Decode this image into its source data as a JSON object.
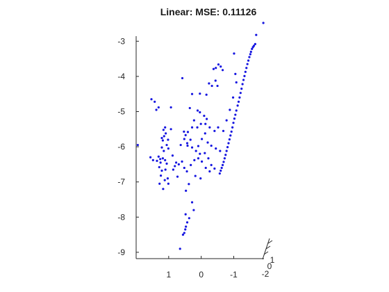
{
  "chart_data": {
    "type": "scatter",
    "title": "Linear: MSE: 0.11126",
    "marker_color": "#1515e0",
    "grid": false,
    "legend": "none",
    "zlim": [
      -9.2,
      -2.5
    ],
    "z_ticks": [
      {
        "value": -3,
        "label": "-3"
      },
      {
        "value": -4,
        "label": "-4"
      },
      {
        "value": -5,
        "label": "-5"
      },
      {
        "value": -6,
        "label": "-6"
      },
      {
        "value": -7,
        "label": "-7"
      },
      {
        "value": -8,
        "label": "-8"
      },
      {
        "value": -9,
        "label": "-9"
      }
    ],
    "xlim": [
      2,
      -2.1
    ],
    "x_ticks": [
      {
        "value": 1,
        "label": "1"
      },
      {
        "value": 0,
        "label": "0"
      },
      {
        "value": -1,
        "label": "-1"
      }
    ],
    "depth_ticks": [
      {
        "label": "1"
      },
      {
        "label": "0"
      },
      {
        "label": "-2"
      }
    ],
    "points": [
      [
        -1.91,
        -2.48
      ],
      [
        -1.69,
        -2.82
      ],
      [
        -1.66,
        -3.08
      ],
      [
        -1.62,
        -3.13
      ],
      [
        -1.59,
        -3.17
      ],
      [
        -1.56,
        -3.22
      ],
      [
        -1.53,
        -3.3
      ],
      [
        -1.51,
        -3.37
      ],
      [
        -1.48,
        -3.45
      ],
      [
        -1.45,
        -3.55
      ],
      [
        -1.42,
        -3.65
      ],
      [
        -1.39,
        -3.76
      ],
      [
        -1.36,
        -3.87
      ],
      [
        -1.33,
        -3.99
      ],
      [
        -1.3,
        -4.1
      ],
      [
        -1.27,
        -4.22
      ],
      [
        -1.24,
        -4.35
      ],
      [
        -1.21,
        -4.47
      ],
      [
        -1.18,
        -4.6
      ],
      [
        -1.15,
        -4.72
      ],
      [
        -1.12,
        -4.83
      ],
      [
        -1.08,
        -4.97
      ],
      [
        -1.05,
        -5.09
      ],
      [
        -1.02,
        -5.2
      ],
      [
        -0.99,
        -5.32
      ],
      [
        -0.96,
        -5.45
      ],
      [
        -0.93,
        -5.57
      ],
      [
        -0.9,
        -5.68
      ],
      [
        -0.87,
        -5.79
      ],
      [
        -0.84,
        -5.9
      ],
      [
        -0.81,
        -6.01
      ],
      [
        -0.78,
        -6.12
      ],
      [
        -0.75,
        -6.23
      ],
      [
        -0.72,
        -6.33
      ],
      [
        -0.69,
        -6.43
      ],
      [
        -0.66,
        -6.52
      ],
      [
        -0.63,
        -6.6
      ],
      [
        -0.6,
        -6.68
      ],
      [
        -0.57,
        -6.76
      ],
      [
        -0.66,
        -3.82
      ],
      [
        -0.6,
        -3.72
      ],
      [
        -0.53,
        -3.66
      ],
      [
        -0.45,
        -3.76
      ],
      [
        -0.38,
        -3.79
      ],
      [
        -0.44,
        -4.12
      ],
      [
        -0.5,
        -4.27
      ],
      [
        -0.33,
        -4.27
      ],
      [
        -0.24,
        -4.2
      ],
      [
        -0.16,
        -4.52
      ],
      [
        0.04,
        -4.49
      ],
      [
        -1.01,
        -3.35
      ],
      [
        -1.05,
        -3.93
      ],
      [
        -1.08,
        -4.17
      ],
      [
        -0.98,
        -4.6
      ],
      [
        -0.88,
        -4.95
      ],
      [
        -0.78,
        -5.25
      ],
      [
        -0.68,
        -5.55
      ],
      [
        -0.52,
        -5.45
      ],
      [
        -0.41,
        -5.55
      ],
      [
        -0.26,
        -5.45
      ],
      [
        -0.13,
        -5.35
      ],
      [
        0.01,
        -5.35
      ],
      [
        0.12,
        -5.45
      ],
      [
        0.28,
        -5.45
      ],
      [
        0.41,
        -5.58
      ],
      [
        0.48,
        -5.67
      ],
      [
        0.53,
        -5.57
      ],
      [
        0.42,
        -5.97
      ],
      [
        0.28,
        -6.02
      ],
      [
        0.16,
        -6.12
      ],
      [
        0.04,
        -6.2
      ],
      [
        -0.11,
        -6.18
      ],
      [
        -0.22,
        -6.33
      ],
      [
        -0.31,
        -6.52
      ],
      [
        -0.41,
        -6.62
      ],
      [
        -0.26,
        -6.7
      ],
      [
        -0.14,
        -6.6
      ],
      [
        -0.02,
        -6.42
      ],
      [
        0.09,
        -6.33
      ],
      [
        0.21,
        -6.38
      ],
      [
        0.32,
        -6.52
      ],
      [
        0.44,
        -6.7
      ],
      [
        0.52,
        -6.6
      ],
      [
        0.18,
        -6.83
      ],
      [
        0.02,
        -6.9
      ],
      [
        0.59,
        -6.42
      ],
      [
        0.69,
        -6.5
      ],
      [
        0.77,
        -6.45
      ],
      [
        0.81,
        -6.55
      ],
      [
        0.73,
        -6.85
      ],
      [
        0.09,
        -5.98
      ],
      [
        -0.02,
        -5.78
      ],
      [
        -0.12,
        -5.62
      ],
      [
        -0.2,
        -5.88
      ],
      [
        -0.31,
        -5.97
      ],
      [
        -0.45,
        -6.05
      ],
      [
        -0.58,
        -6.12
      ],
      [
        0.52,
        -5.78
      ],
      [
        0.63,
        -5.95
      ],
      [
        0.43,
        -5.9
      ],
      [
        0.33,
        -5.8
      ],
      [
        0.58,
        -4.05
      ],
      [
        0.28,
        -4.5
      ],
      [
        0.35,
        -4.9
      ],
      [
        0.22,
        -5.25
      ],
      [
        0.11,
        -4.97
      ],
      [
        0.04,
        -5.02
      ],
      [
        -0.09,
        -5.12
      ],
      [
        -0.17,
        -5.21
      ],
      [
        1.11,
        -5.45
      ],
      [
        1.16,
        -5.52
      ],
      [
        1.09,
        -5.62
      ],
      [
        1.14,
        -5.7
      ],
      [
        1.21,
        -5.75
      ],
      [
        1.02,
        -5.8
      ],
      [
        1.18,
        -5.82
      ],
      [
        1.06,
        -5.95
      ],
      [
        1.21,
        -6.02
      ],
      [
        1.01,
        -6.05
      ],
      [
        1.15,
        -6.12
      ],
      [
        0.93,
        -5.5
      ],
      [
        1.31,
        -6.28
      ],
      [
        1.26,
        -6.35
      ],
      [
        1.18,
        -6.33
      ],
      [
        1.11,
        -6.38
      ],
      [
        1.36,
        -6.4
      ],
      [
        1.25,
        -6.45
      ],
      [
        1.06,
        -6.48
      ],
      [
        1.29,
        -6.58
      ],
      [
        1.1,
        -6.65
      ],
      [
        1.21,
        -6.68
      ],
      [
        1.24,
        -6.82
      ],
      [
        1.03,
        -6.9
      ],
      [
        1.12,
        -6.95
      ],
      [
        1.28,
        -7.05
      ],
      [
        1.01,
        -7.05
      ],
      [
        1.17,
        -7.2
      ],
      [
        1.38,
        -4.95
      ],
      [
        1.31,
        -4.88
      ],
      [
        1.43,
        -4.72
      ],
      [
        1.53,
        -4.65
      ],
      [
        0.93,
        -4.88
      ],
      [
        1.56,
        -6.3
      ],
      [
        1.48,
        -6.38
      ],
      [
        0.88,
        -6.25
      ],
      [
        0.86,
        -6.65
      ],
      [
        1.95,
        -5.95
      ],
      [
        0.47,
        -7.25
      ],
      [
        0.38,
        -7.06
      ],
      [
        0.23,
        -7.8
      ],
      [
        0.28,
        -7.58
      ],
      [
        0.48,
        -7.92
      ],
      [
        0.37,
        -8.03
      ],
      [
        0.43,
        -8.15
      ],
      [
        0.47,
        -8.27
      ],
      [
        0.49,
        -8.35
      ],
      [
        0.52,
        -8.45
      ],
      [
        0.56,
        -8.5
      ],
      [
        0.65,
        -8.9
      ]
    ]
  }
}
